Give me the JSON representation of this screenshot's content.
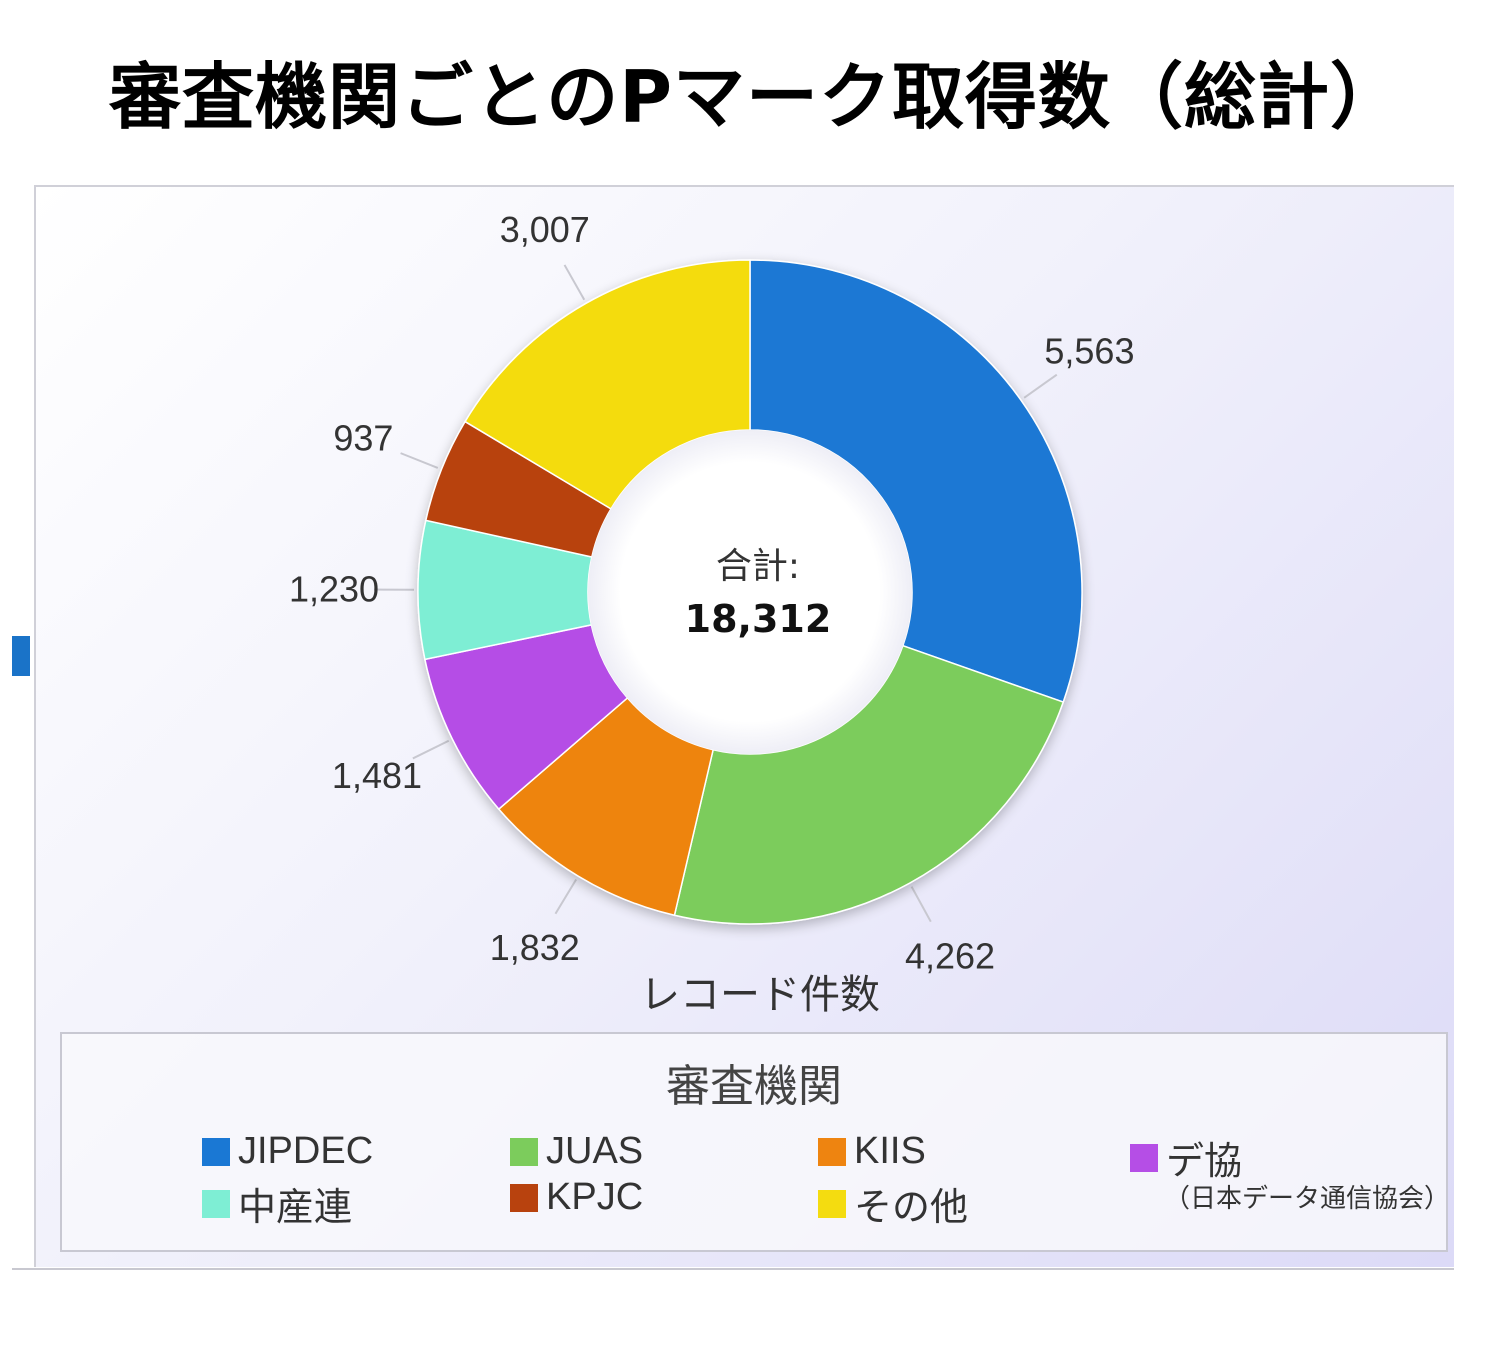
{
  "header": {
    "title": "審査機関ごとのPマーク取得数（総計）"
  },
  "chart_data": {
    "type": "pie",
    "variant": "donut",
    "title": "審査機関ごとのPマーク取得数（総計）",
    "center_caption": "合計:",
    "center_total": "18,312",
    "total": 18312,
    "axis_label": "レコード件数",
    "legend_title": "審査機関",
    "legend_placement": "bottom",
    "slices": [
      {
        "name": "JIPDEC",
        "value": 5563,
        "label": "5,563",
        "color": "#1a78d4"
      },
      {
        "name": "JUAS",
        "value": 4262,
        "label": "4,262",
        "color": "#7ccc5c"
      },
      {
        "name": "KIIS",
        "value": 1832,
        "label": "1,832",
        "color": "#ee8410"
      },
      {
        "name": "デ協",
        "value": 1481,
        "label": "1,481",
        "color": "#b54ee6"
      },
      {
        "name": "中産連",
        "value": 1230,
        "label": "1,230",
        "color": "#7eeed4"
      },
      {
        "name": "KPJC",
        "value": 937,
        "label": "937",
        "color": "#b8420e"
      },
      {
        "name": "その他",
        "value": 3007,
        "label": "3,007",
        "color": "#f4dc10"
      }
    ]
  },
  "legend": {
    "items": [
      {
        "name": "JIPDEC",
        "color": "#1a78d4"
      },
      {
        "name": "JUAS",
        "color": "#7ccc5c"
      },
      {
        "name": "KIIS",
        "color": "#ee8410"
      },
      {
        "name": "デ協",
        "color": "#b54ee6"
      },
      {
        "name": "中産連",
        "color": "#7eeed4"
      },
      {
        "name": "KPJC",
        "color": "#b8420e"
      },
      {
        "name": "その他",
        "color": "#f4dc10"
      }
    ],
    "note": "（日本データ通信協会）"
  }
}
